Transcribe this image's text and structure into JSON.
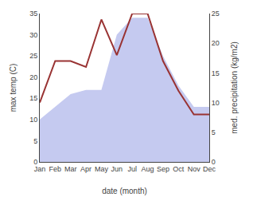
{
  "chart_data": {
    "type": "line",
    "xlabel": "date (month)",
    "ylabel": "max temp (C)",
    "y2label": "med. precipitation (kg/m2)",
    "categories": [
      "Jan",
      "Feb",
      "Mar",
      "Apr",
      "May",
      "Jun",
      "Jul",
      "Aug",
      "Sep",
      "Oct",
      "Nov",
      "Dec"
    ],
    "series": [
      {
        "type": "area",
        "color": "#c5caf0",
        "values": [
          10,
          13,
          16,
          17,
          17,
          30,
          34,
          34,
          25,
          18,
          13,
          13
        ]
      },
      {
        "type": "line",
        "color": "#993333",
        "axis": "y2",
        "values": [
          10,
          17,
          17,
          16,
          24,
          18,
          25,
          25,
          17,
          12,
          8,
          8
        ]
      }
    ],
    "ylim": [
      0,
      35
    ],
    "yticks": [
      0,
      5,
      10,
      15,
      20,
      25,
      30,
      35
    ],
    "y2lim": [
      0,
      25
    ],
    "y2ticks": [
      0,
      5,
      10,
      15,
      20,
      25
    ],
    "grid": false
  }
}
